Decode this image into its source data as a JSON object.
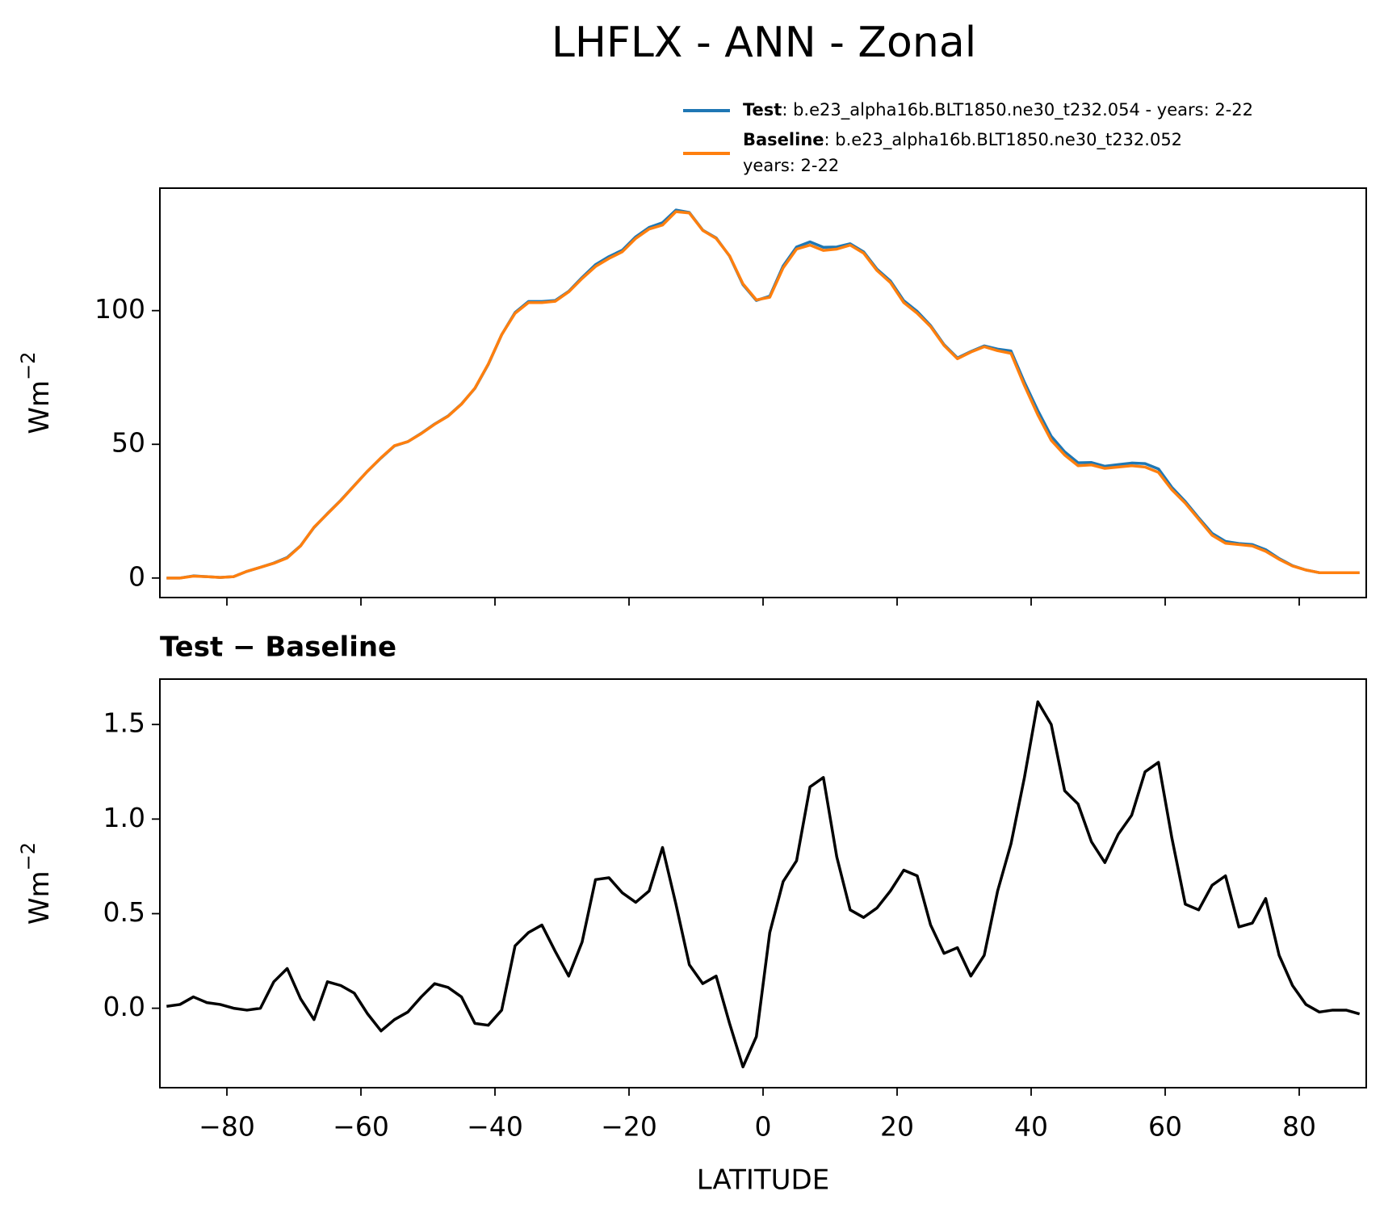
{
  "title": "LHFLX - ANN - Zonal",
  "chart_data": [
    {
      "type": "line",
      "ylabel": "Wm",
      "ylabel_sup": "−2",
      "xlim": [
        -90,
        90
      ],
      "ylim": [
        -7.3,
        145.8
      ],
      "xticks": [
        -80,
        -60,
        -40,
        -20,
        0,
        20,
        40,
        60,
        80
      ],
      "xtick_labels": false,
      "yticks": [
        0,
        50,
        100
      ],
      "legend": "upper right outside",
      "x": [
        -89,
        -87,
        -85,
        -83,
        -81,
        -79,
        -77,
        -75,
        -73,
        -71,
        -69,
        -67,
        -65,
        -63,
        -61,
        -59,
        -57,
        -55,
        -53,
        -51,
        -49,
        -47,
        -45,
        -43,
        -41,
        -39,
        -37,
        -35,
        -33,
        -31,
        -29,
        -27,
        -25,
        -23,
        -21,
        -19,
        -17,
        -15,
        -13,
        -11,
        -9,
        -7,
        -5,
        -3,
        -1,
        1,
        3,
        5,
        7,
        9,
        11,
        13,
        15,
        17,
        19,
        21,
        23,
        25,
        27,
        29,
        31,
        33,
        35,
        37,
        39,
        41,
        43,
        45,
        47,
        49,
        51,
        53,
        55,
        57,
        59,
        61,
        63,
        65,
        67,
        69,
        71,
        73,
        75,
        77,
        79,
        81,
        83,
        85,
        87,
        89
      ],
      "series": [
        {
          "name": "Test",
          "label_lines": [
            ": b.e23_alpha16b.BLT1850.ne30_t232.054 - years: 2-22"
          ],
          "color": "#1f77b4",
          "values": [
            0.0,
            0.0,
            0.8,
            0.5,
            0.2,
            0.5,
            2.5,
            4.0,
            5.6,
            7.7,
            12.1,
            18.9,
            24.1,
            29.1,
            34.6,
            40.0,
            44.9,
            49.4,
            51.0,
            54.1,
            57.6,
            60.6,
            65.1,
            70.9,
            79.9,
            91.0,
            99.3,
            103.4,
            103.4,
            103.8,
            107.2,
            112.4,
            117.2,
            120.2,
            122.6,
            127.6,
            131.1,
            132.9,
            137.6,
            136.7,
            130.1,
            127.2,
            120.4,
            109.7,
            103.8,
            105.4,
            116.7,
            123.8,
            125.7,
            123.7,
            123.8,
            125.0,
            122.0,
            115.5,
            111.1,
            103.7,
            99.7,
            94.4,
            87.3,
            82.3,
            84.7,
            86.8,
            85.6,
            84.9,
            73.2,
            62.6,
            53.0,
            47.2,
            43.1,
            43.2,
            41.8,
            42.4,
            43.0,
            42.8,
            40.8,
            33.9,
            28.6,
            22.5,
            16.7,
            13.7,
            12.9,
            12.5,
            10.6,
            7.3,
            4.6,
            3.0,
            2.0,
            2.0,
            2.0,
            2.0
          ]
        },
        {
          "name": "Baseline",
          "label_lines": [
            ": b.e23_alpha16b.BLT1850.ne30_t232.052",
            "years: 2-22"
          ],
          "color": "#ff7f0e",
          "values": [
            0,
            0,
            0.7,
            0.5,
            0.2,
            0.5,
            2.5,
            4,
            5.5,
            7.5,
            12,
            19,
            24,
            29,
            34.5,
            40,
            45,
            49.5,
            51,
            54,
            57.5,
            60.5,
            65,
            71,
            80,
            91,
            99,
            103,
            103,
            103.5,
            107,
            112,
            116.5,
            119.5,
            122,
            127,
            130.5,
            132,
            137,
            136.5,
            130,
            127,
            120.5,
            110,
            104,
            105,
            116,
            123,
            124.5,
            122.5,
            123,
            124.5,
            121.5,
            115,
            110.5,
            103,
            99,
            94,
            87,
            82,
            84.5,
            86.5,
            85,
            84,
            72,
            61,
            51.5,
            46,
            42,
            42.3,
            41,
            41.5,
            42,
            41.5,
            39.5,
            33,
            28,
            22,
            16,
            13,
            12.5,
            12,
            10,
            7,
            4.5,
            3,
            2,
            2,
            2,
            2
          ]
        }
      ]
    },
    {
      "type": "line",
      "title": "Test − Baseline",
      "ylabel": "Wm",
      "ylabel_sup": "−2",
      "xlabel": "LATITUDE",
      "xlim": [
        -90,
        90
      ],
      "ylim": [
        -0.42,
        1.74
      ],
      "xticks": [
        {
          "value": -80,
          "label": "−80"
        },
        {
          "value": -60,
          "label": "−60"
        },
        {
          "value": -40,
          "label": "−40"
        },
        {
          "value": -20,
          "label": "−20"
        },
        0,
        20,
        40,
        60,
        80
      ],
      "yticks": [
        {
          "value": 0,
          "label": "0.0"
        },
        {
          "value": 0.5,
          "label": "0.5"
        },
        {
          "value": 1,
          "label": "1.0"
        },
        {
          "value": 1.5,
          "label": "1.5"
        }
      ],
      "x": [
        -89,
        -87,
        -85,
        -83,
        -81,
        -79,
        -77,
        -75,
        -73,
        -71,
        -69,
        -67,
        -65,
        -63,
        -61,
        -59,
        -57,
        -55,
        -53,
        -51,
        -49,
        -47,
        -45,
        -43,
        -41,
        -39,
        -37,
        -35,
        -33,
        -31,
        -29,
        -27,
        -25,
        -23,
        -21,
        -19,
        -17,
        -15,
        -13,
        -11,
        -9,
        -7,
        -5,
        -3,
        -1,
        1,
        3,
        5,
        7,
        9,
        11,
        13,
        15,
        17,
        19,
        21,
        23,
        25,
        27,
        29,
        31,
        33,
        35,
        37,
        39,
        41,
        43,
        45,
        47,
        49,
        51,
        53,
        55,
        57,
        59,
        61,
        63,
        65,
        67,
        69,
        71,
        73,
        75,
        77,
        79,
        81,
        83,
        85,
        87,
        89
      ],
      "series": [
        {
          "color": "#000000",
          "values": [
            0.01,
            0.02,
            0.06,
            0.03,
            0.02,
            0.0,
            -0.01,
            0.0,
            0.14,
            0.21,
            0.05,
            -0.06,
            0.14,
            0.12,
            0.08,
            -0.03,
            -0.12,
            -0.06,
            -0.02,
            0.06,
            0.13,
            0.11,
            0.06,
            -0.08,
            -0.09,
            -0.01,
            0.33,
            0.4,
            0.44,
            0.3,
            0.17,
            0.35,
            0.68,
            0.69,
            0.61,
            0.56,
            0.62,
            0.85,
            0.55,
            0.23,
            0.13,
            0.17,
            -0.08,
            -0.31,
            -0.15,
            0.4,
            0.67,
            0.78,
            1.17,
            1.22,
            0.8,
            0.52,
            0.48,
            0.53,
            0.62,
            0.73,
            0.7,
            0.44,
            0.29,
            0.32,
            0.17,
            0.28,
            0.62,
            0.87,
            1.22,
            1.62,
            1.5,
            1.15,
            1.08,
            0.88,
            0.77,
            0.92,
            1.02,
            1.25,
            1.3,
            0.9,
            0.55,
            0.52,
            0.65,
            0.7,
            0.43,
            0.45,
            0.58,
            0.28,
            0.12,
            0.02,
            -0.02,
            -0.01,
            -0.01,
            -0.03
          ]
        }
      ]
    }
  ]
}
